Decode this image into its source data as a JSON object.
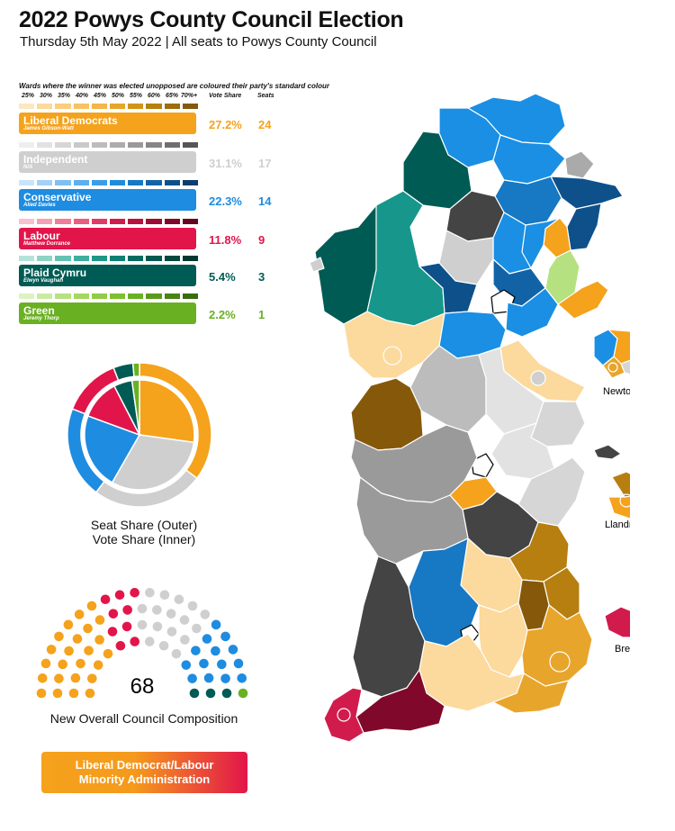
{
  "title": "2022 Powys County Council Election",
  "subtitle": "Thursday 5th May 2022 | All seats to Powys County Council",
  "note": "Wards where the winner was elected unopposed are coloured their party's standard colour",
  "scale_labels": [
    "25%",
    "30%",
    "35%",
    "40%",
    "45%",
    "50%",
    "55%",
    "60%",
    "65%",
    "70%+"
  ],
  "headers": {
    "vote_share": "Vote Share",
    "seats": "Seats"
  },
  "parties": [
    {
      "name": "Liberal Democrats",
      "leader": "James Gibson-Watt",
      "vote_share": "27.2%",
      "seats": "24",
      "color": "#f5a21c",
      "shades": [
        "#fde7c2",
        "#fcd99c",
        "#fbcd7e",
        "#f9c261",
        "#f5b548",
        "#e8a52c",
        "#d19419",
        "#b67f10",
        "#9e6c0b",
        "#86590a"
      ]
    },
    {
      "name": "Independent",
      "leader": "N/A",
      "vote_share": "31.1%",
      "seats": "17",
      "color": "#cfcfcf",
      "shades": [
        "#eeeeee",
        "#e2e2e2",
        "#d6d6d6",
        "#c9c9c9",
        "#bcbcbc",
        "#acacac",
        "#9a9a9a",
        "#868686",
        "#6f6f6f",
        "#565656"
      ]
    },
    {
      "name": "Conservative",
      "leader": "Alied Davies",
      "vote_share": "22.3%",
      "seats": "14",
      "color": "#1e8ce0",
      "shades": [
        "#c9e4fb",
        "#a3d1f8",
        "#7ebff4",
        "#5caff0",
        "#3a9de9",
        "#208bdc",
        "#1778c3",
        "#1263a6",
        "#0e508a",
        "#0b3d6e"
      ]
    },
    {
      "name": "Labour",
      "leader": "Matthew Dorrance",
      "vote_share": "11.8%",
      "seats": "9",
      "color": "#e2154a",
      "shades": [
        "#f9c1cf",
        "#f4a0b5",
        "#ef7e9a",
        "#e95d80",
        "#e03c66",
        "#d21b4d",
        "#b8123f",
        "#9c0e35",
        "#80092b",
        "#650520"
      ]
    },
    {
      "name": "Plaid Cymru",
      "leader": "Elwyn Vaughan",
      "vote_share": "5.4%",
      "seats": "3",
      "color": "#005b54",
      "shades": [
        "#b5e3da",
        "#8dd3c6",
        "#64c2b2",
        "#3fae9d",
        "#1f9787",
        "#0c8171",
        "#056c5f",
        "#035a50",
        "#024940",
        "#013932"
      ]
    },
    {
      "name": "Green",
      "leader": "Jeremy Thorp",
      "vote_share": "2.2%",
      "seats": "1",
      "color": "#6ab023",
      "shades": [
        "#dcf2c2",
        "#c9eaa1",
        "#b6e180",
        "#a3d760",
        "#90cc45",
        "#7dbf2f",
        "#6ab023",
        "#599a1b",
        "#488414",
        "#386d0e"
      ]
    }
  ],
  "chart_data": [
    {
      "type": "pie",
      "title": "",
      "rings": [
        {
          "name": "Seat Share (Outer)",
          "categories": [
            "Liberal Democrats",
            "Independent",
            "Conservative",
            "Labour",
            "Plaid Cymru",
            "Green"
          ],
          "values": [
            24,
            17,
            14,
            9,
            3,
            1
          ]
        },
        {
          "name": "Vote Share (Inner)",
          "categories": [
            "Liberal Democrats",
            "Independent",
            "Conservative",
            "Labour",
            "Plaid Cymru",
            "Green"
          ],
          "values": [
            27.2,
            31.1,
            22.3,
            11.8,
            5.4,
            2.2
          ]
        }
      ],
      "colors": [
        "#f5a21c",
        "#cfcfcf",
        "#1e8ce0",
        "#e2154a",
        "#005b54",
        "#6ab023"
      ]
    },
    {
      "type": "parliament",
      "title": "New Overall Council Composition",
      "total": "68",
      "categories": [
        "Liberal Democrats",
        "Labour",
        "Independent",
        "Conservative",
        "Plaid Cymru",
        "Green"
      ],
      "values": [
        24,
        9,
        17,
        14,
        3,
        1
      ],
      "colors": [
        "#f5a21c",
        "#e2154a",
        "#cfcfcf",
        "#1e8ce0",
        "#005b54",
        "#6ab023"
      ]
    }
  ],
  "pie_caption": {
    "line1": "Seat Share (Outer)",
    "line2": "Vote Share (Inner)"
  },
  "parliament_caption": "New Overall Council Composition",
  "parliament_total": "68",
  "map_labels": {
    "newtown": "Newtown",
    "llandrindod": "Llandrindod",
    "brecon": "Brecon"
  },
  "banner": {
    "line1": "Liberal Democrat/Labour",
    "line2": "Minority Administration"
  }
}
